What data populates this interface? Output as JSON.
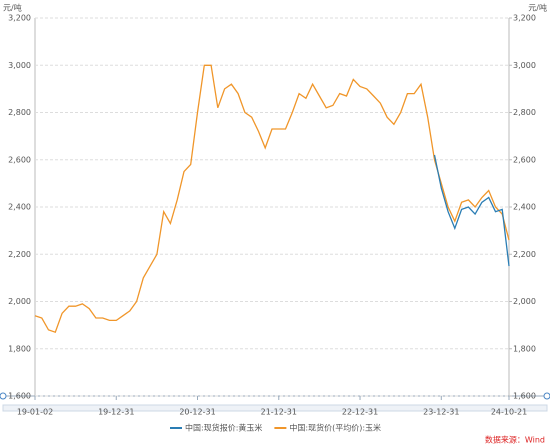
{
  "chart_data": {
    "type": "line",
    "y_unit": "元/吨",
    "y2_unit": "元/吨",
    "categories": [
      "19-01-02",
      null,
      null,
      null,
      null,
      null,
      null,
      null,
      null,
      null,
      null,
      null,
      "19-12-31",
      null,
      null,
      null,
      null,
      null,
      null,
      null,
      null,
      null,
      null,
      null,
      "20-12-31",
      null,
      null,
      null,
      null,
      null,
      null,
      null,
      null,
      null,
      null,
      null,
      "21-12-31",
      null,
      null,
      null,
      null,
      null,
      null,
      null,
      null,
      null,
      null,
      null,
      "22-12-31",
      null,
      null,
      null,
      null,
      null,
      null,
      null,
      null,
      null,
      null,
      null,
      "23-12-31",
      null,
      null,
      null,
      null,
      null,
      null,
      null,
      null,
      null,
      "24-10-21"
    ],
    "series": [
      {
        "name": "中国:现货报价:黄玉米",
        "color": "#2a7db4",
        "axis": "y",
        "values": [
          null,
          null,
          null,
          null,
          null,
          null,
          null,
          null,
          null,
          null,
          null,
          null,
          null,
          null,
          null,
          null,
          null,
          null,
          null,
          null,
          null,
          null,
          null,
          null,
          null,
          null,
          null,
          null,
          null,
          null,
          null,
          null,
          null,
          null,
          null,
          null,
          null,
          null,
          null,
          null,
          null,
          null,
          null,
          null,
          null,
          null,
          null,
          null,
          null,
          null,
          null,
          null,
          null,
          null,
          null,
          null,
          null,
          null,
          null,
          2620,
          2480,
          2380,
          2310,
          2390,
          2400,
          2370,
          2420,
          2440,
          2380,
          2390,
          2150
        ]
      },
      {
        "name": "中国:现货价(平均价):玉米",
        "color": "#f0962a",
        "axis": "y2",
        "values": [
          1940,
          1930,
          1880,
          1870,
          1950,
          1980,
          1980,
          1990,
          1970,
          1930,
          1930,
          1920,
          1920,
          1940,
          1960,
          2000,
          2100,
          2150,
          2200,
          2380,
          2330,
          2430,
          2550,
          2580,
          2800,
          3000,
          3000,
          2820,
          2900,
          2920,
          2880,
          2800,
          2780,
          2720,
          2650,
          2730,
          2730,
          2730,
          2800,
          2880,
          2860,
          2920,
          2870,
          2820,
          2830,
          2880,
          2870,
          2940,
          2910,
          2900,
          2870,
          2840,
          2780,
          2750,
          2800,
          2880,
          2880,
          2920,
          2780,
          2600,
          2500,
          2400,
          2340,
          2420,
          2430,
          2400,
          2440,
          2470,
          2400,
          2370,
          2260
        ]
      }
    ],
    "ylim": [
      1600,
      3200
    ],
    "yticks": [
      {
        "value": 1600,
        "label": "1,600"
      },
      {
        "value": 1800,
        "label": "1,800"
      },
      {
        "value": 2000,
        "label": "2,000"
      },
      {
        "value": 2200,
        "label": "2,200"
      },
      {
        "value": 2400,
        "label": "2,400"
      },
      {
        "value": 2600,
        "label": "2,600"
      },
      {
        "value": 2800,
        "label": "2,800"
      },
      {
        "value": 3000,
        "label": "3,000"
      },
      {
        "value": 3200,
        "label": "3,200"
      }
    ],
    "y2lim": [
      1600,
      3200
    ],
    "y2ticks": [
      {
        "value": 1600,
        "label": "1,600"
      },
      {
        "value": 1800,
        "label": "1,800"
      },
      {
        "value": 2000,
        "label": "2,000"
      },
      {
        "value": 2200,
        "label": "2,200"
      },
      {
        "value": 2400,
        "label": "2,400"
      },
      {
        "value": 2600,
        "label": "2,600"
      },
      {
        "value": 2800,
        "label": "2,800"
      },
      {
        "value": 3000,
        "label": "3,000"
      },
      {
        "value": 3200,
        "label": "3,200"
      }
    ],
    "grid": true,
    "source": "数据来源：Wind"
  }
}
